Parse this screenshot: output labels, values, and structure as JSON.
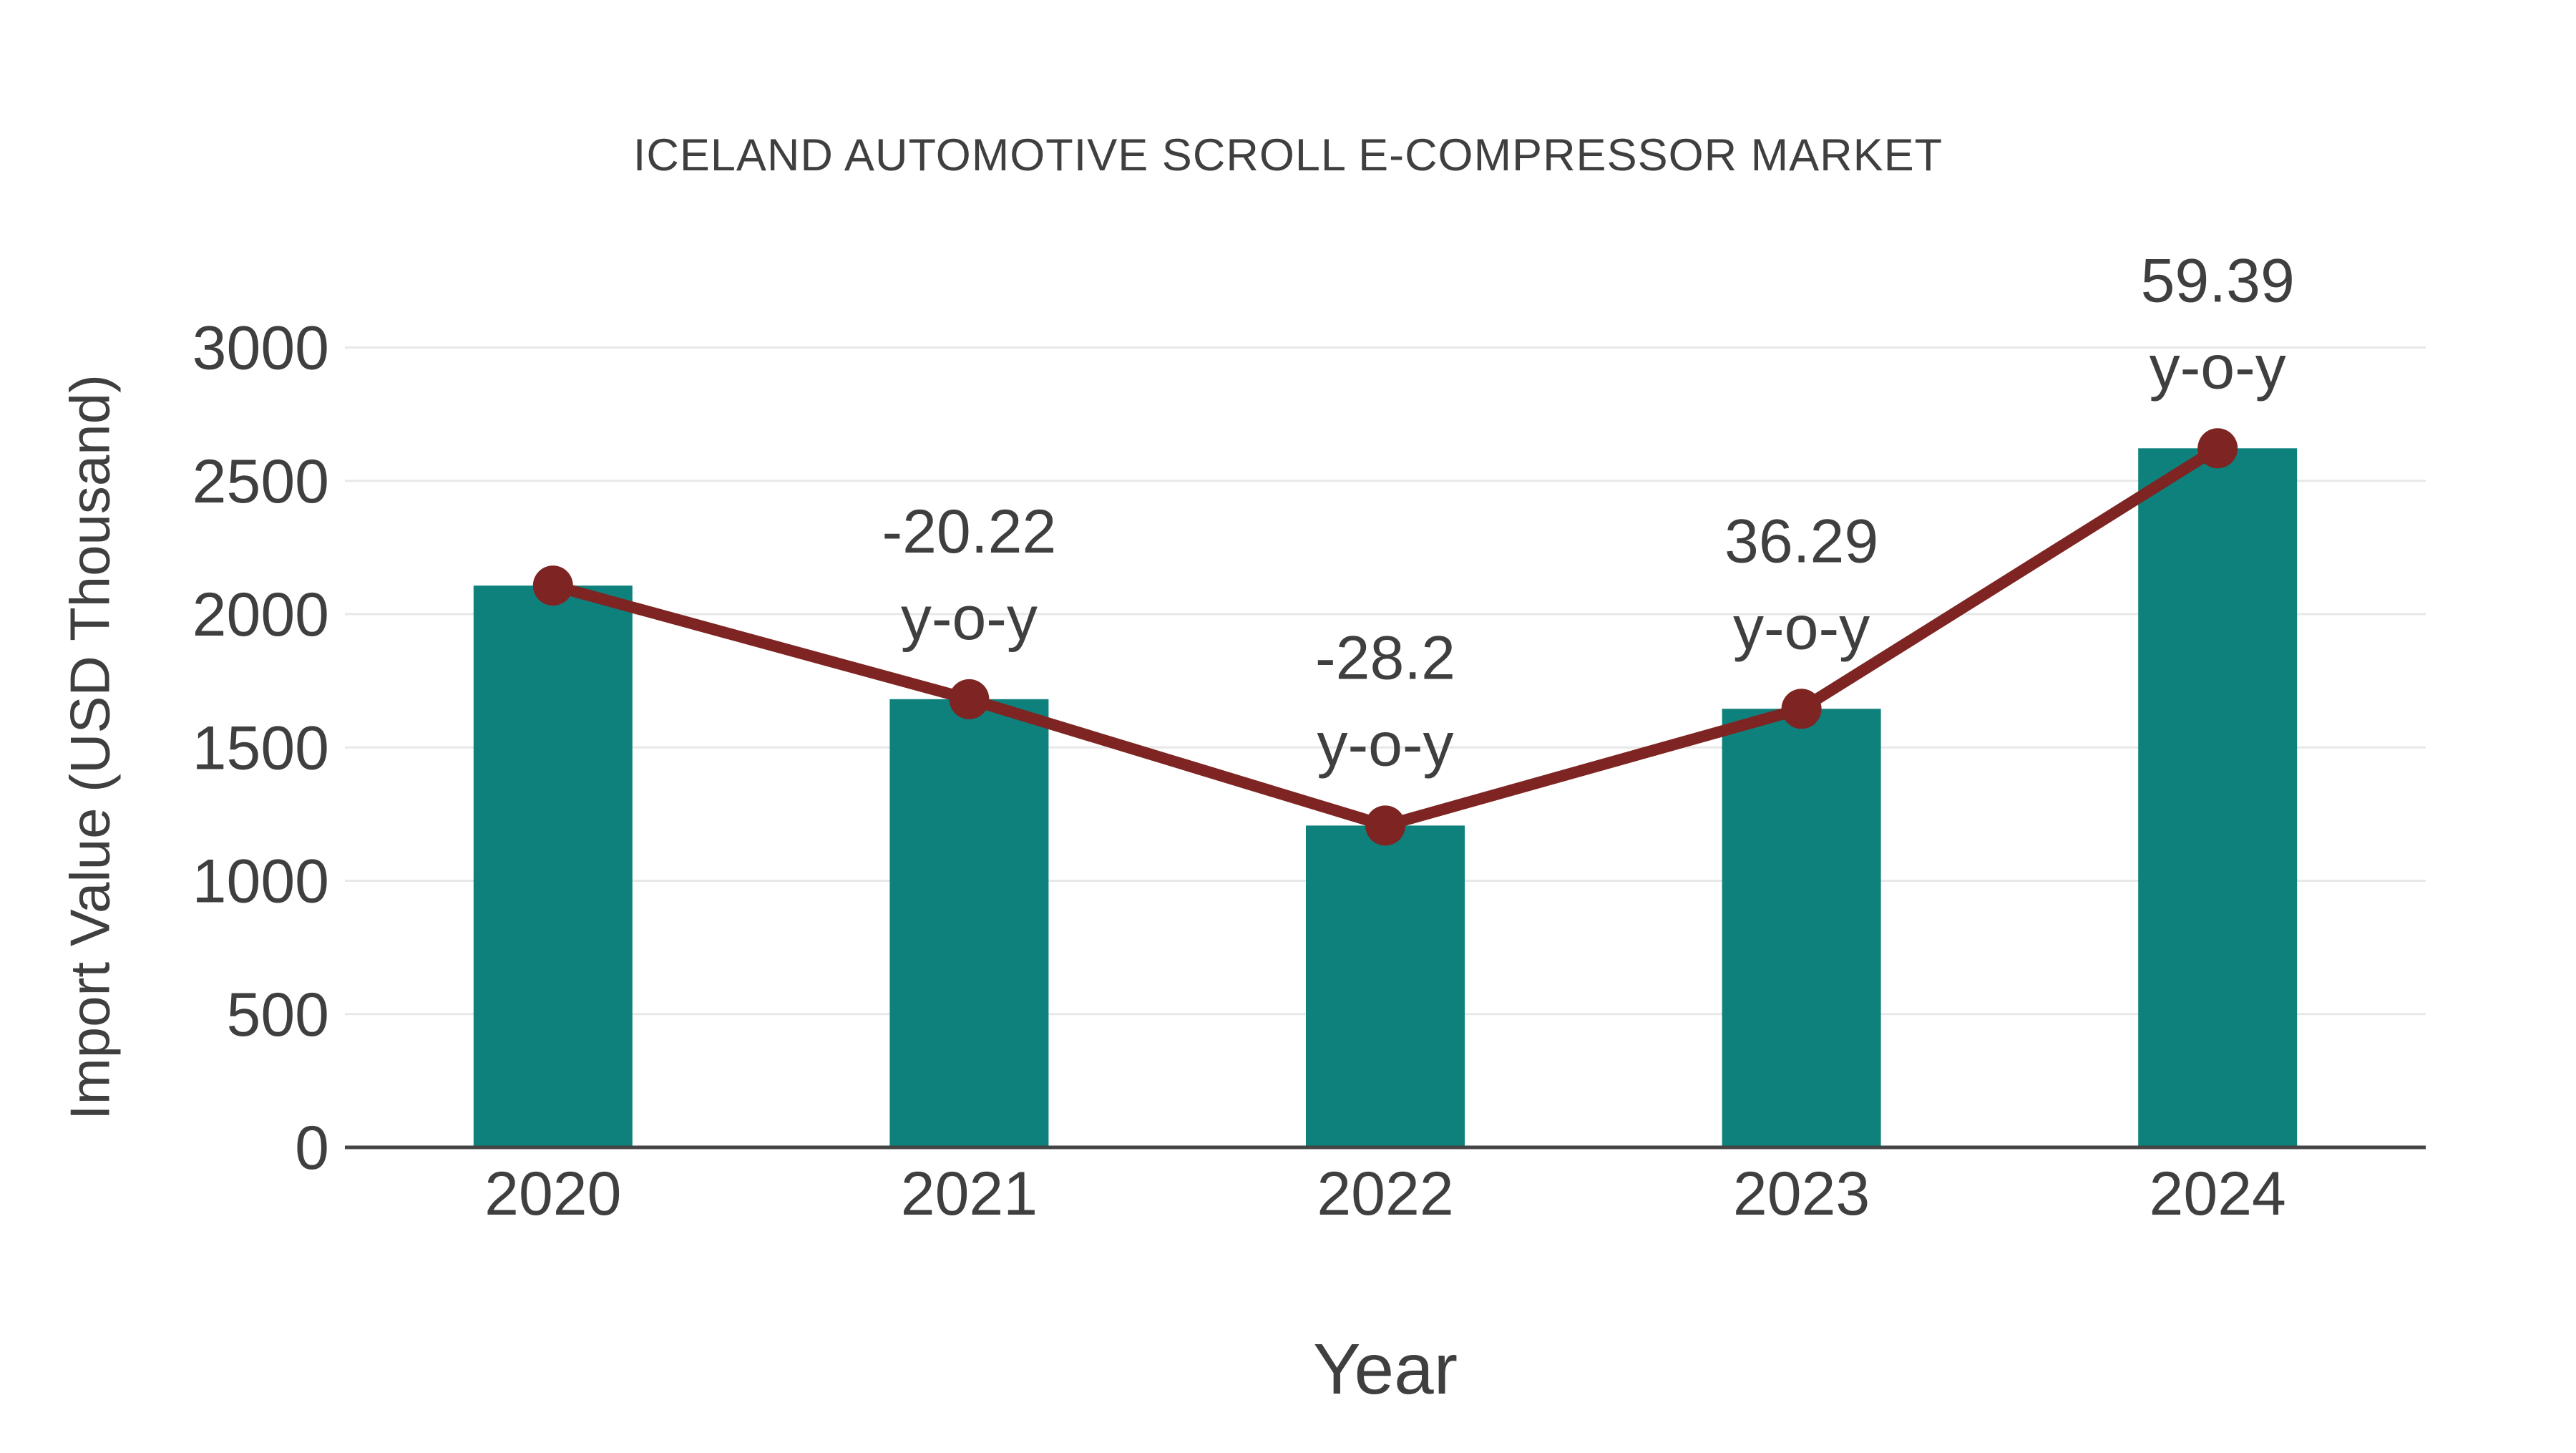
{
  "chart_data": {
    "type": "bar",
    "title": "ICELAND AUTOMOTIVE SCROLL E-COMPRESSOR MARKET",
    "xlabel": "Year",
    "ylabel": "Import Value (USD Thousand)",
    "categories": [
      "2020",
      "2021",
      "2022",
      "2023",
      "2024"
    ],
    "series": [
      {
        "name": "Import Value (USD Thousand)",
        "type": "bar",
        "values": [
          2107,
          1681,
          1207,
          1645,
          2622
        ],
        "color": "#0E817D"
      },
      {
        "name": "year-over-year trend line",
        "type": "line",
        "values": [
          2107,
          1681,
          1207,
          1645,
          2622
        ],
        "color": "#7E2422"
      }
    ],
    "annotations": [
      {
        "category": "2021",
        "line1": "-20.22",
        "line2": "y-o-y",
        "yoy_percent": -20.22
      },
      {
        "category": "2022",
        "line1": "-28.2",
        "line2": "y-o-y",
        "yoy_percent": -28.2
      },
      {
        "category": "2023",
        "line1": "36.29",
        "line2": "y-o-y",
        "yoy_percent": 36.29
      },
      {
        "category": "2024",
        "line1": "59.39",
        "line2": "y-o-y",
        "yoy_percent": 59.39
      }
    ],
    "yticks": [
      0,
      500,
      1000,
      1500,
      2000,
      2500,
      3000
    ],
    "ylim": [
      0,
      3000
    ],
    "grid": true,
    "legend_position": "none",
    "colors": {
      "bar": "#0E817D",
      "line": "#7E2422",
      "marker": "#7E2422",
      "text": "#3F3F3F",
      "gridline": "#E8E8E8",
      "axis_line": "#444444"
    }
  }
}
